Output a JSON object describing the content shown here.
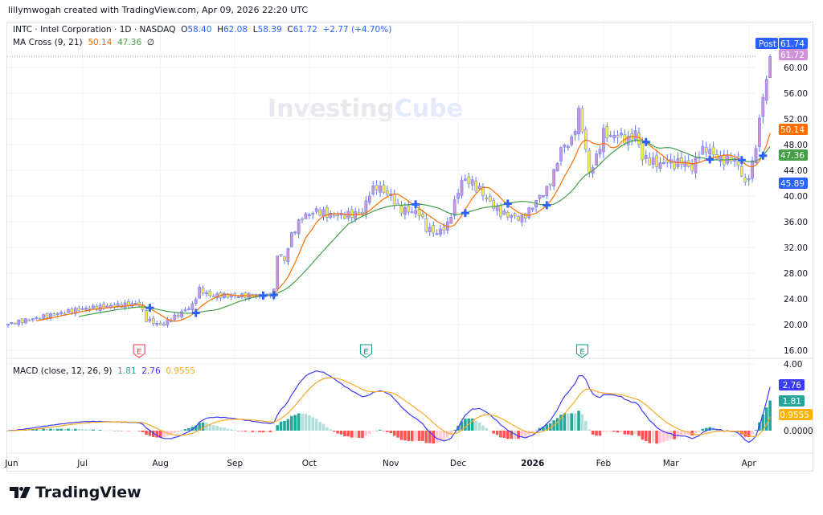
{
  "credit": "lillymwogah created with TradingView.com, Apr 09, 2026 22:20 UTC",
  "legend": {
    "symbol": "INTC · Intel Corporation · 1D · NASDAQ",
    "o_label": "O",
    "o": "58.40",
    "h_label": "H",
    "h": "62.08",
    "l_label": "L",
    "l": "58.39",
    "c_label": "C",
    "c": "61.72",
    "change": "+2.77 (+4.70%)",
    "ma_name": "MA Cross (9, 21)",
    "ma_fast": "50.14",
    "ma_slow": "47.36",
    "ma_icon": "∅",
    "macd_name": "MACD (close, 12, 26, 9)",
    "macd_hist": "1.81",
    "macd_line": "2.76",
    "macd_signal": "0.9555"
  },
  "watermark": {
    "a": "Investing",
    "b": "Cube"
  },
  "logo": "TradingView",
  "colors": {
    "up_body": "#ce93d8",
    "down_body": "#ffeb3b",
    "wick": "#5b7cfa",
    "ma_fast": "#ff6d00",
    "ma_slow": "#43a047",
    "cross": "#2962ff",
    "macd": "#3b3bff",
    "signal": "#f9a825",
    "hist_pos": "#26a69a",
    "hist_pos_light": "#b2dfdb",
    "hist_neg": "#ff5252",
    "hist_neg_light": "#ffcdd2"
  },
  "chart_data": {
    "type": "candlestick",
    "symbol": "INTC",
    "interval": "1D",
    "price_ticks": [
      "60.00",
      "56.00",
      "52.00",
      "48.00",
      "44.00",
      "40.00",
      "36.00",
      "32.00",
      "28.00",
      "24.00",
      "20.00",
      "16.00"
    ],
    "price_range": [
      16,
      60
    ],
    "macd_ticks": [
      "4.00",
      "0.0000"
    ],
    "x_ticks": [
      "Jun",
      "Jul",
      "Aug",
      "Sep",
      "Oct",
      "Nov",
      "Dec",
      "2026",
      "Feb",
      "Mar",
      "Apr"
    ],
    "x_tick_days": [
      1,
      21,
      43,
      64,
      85,
      108,
      127,
      148,
      168,
      187,
      209
    ],
    "close_path": [
      [
        0,
        20.1
      ],
      [
        20,
        22.4
      ],
      [
        37,
        23.3
      ],
      [
        39,
        20.8
      ],
      [
        43,
        19.9
      ],
      [
        45,
        20.5
      ],
      [
        52,
        23
      ],
      [
        54,
        25.5
      ],
      [
        57,
        24.5
      ],
      [
        63,
        24.5
      ],
      [
        73,
        24.5
      ],
      [
        75,
        25.2
      ],
      [
        76,
        31
      ],
      [
        78,
        30
      ],
      [
        80,
        34
      ],
      [
        83,
        36.7
      ],
      [
        87,
        37.7
      ],
      [
        91,
        37
      ],
      [
        95,
        37
      ],
      [
        100,
        37.4
      ],
      [
        102,
        40.5
      ],
      [
        104,
        41.5
      ],
      [
        108,
        40
      ],
      [
        110,
        38
      ],
      [
        113,
        37.7
      ],
      [
        116,
        37.4
      ],
      [
        118,
        35
      ],
      [
        121,
        34.2
      ],
      [
        124,
        35.5
      ],
      [
        126,
        39
      ],
      [
        128,
        42.4
      ],
      [
        130,
        42.4
      ],
      [
        133,
        41
      ],
      [
        136,
        39
      ],
      [
        139,
        37.4
      ],
      [
        143,
        36.7
      ],
      [
        145,
        36.5
      ],
      [
        147,
        37.7
      ],
      [
        150,
        40
      ],
      [
        152,
        41
      ],
      [
        154,
        43.6
      ],
      [
        156,
        47.4
      ],
      [
        159,
        48.6
      ],
      [
        161,
        53
      ],
      [
        162,
        50.5
      ],
      [
        164,
        43.6
      ],
      [
        166,
        46
      ],
      [
        168,
        49.9
      ],
      [
        170,
        49.2
      ],
      [
        172,
        49.5
      ],
      [
        175,
        48.6
      ],
      [
        177,
        49.9
      ],
      [
        179,
        46
      ],
      [
        181,
        45.5
      ],
      [
        184,
        44.9
      ],
      [
        186,
        45.5
      ],
      [
        188,
        44.9
      ],
      [
        190,
        45.5
      ],
      [
        193,
        44.2
      ],
      [
        195,
        46.7
      ],
      [
        197,
        47.4
      ],
      [
        200,
        46
      ],
      [
        202,
        45.5
      ],
      [
        204,
        46
      ],
      [
        206,
        44.9
      ],
      [
        208,
        41.7
      ],
      [
        210,
        44.9
      ],
      [
        211,
        48
      ],
      [
        212,
        51.7
      ],
      [
        213,
        55.5
      ],
      [
        214,
        58.4
      ],
      [
        215,
        61.72
      ]
    ],
    "last": {
      "open": 58.4,
      "high": 62.08,
      "low": 58.39,
      "close": 61.72
    },
    "earnings_days": [
      37,
      101,
      162
    ],
    "price_tags": [
      {
        "label": "Post",
        "value": "61.74",
        "color": "#2962ff"
      },
      {
        "value": "61.72",
        "color": "#ce93d8"
      },
      {
        "value": "50.14",
        "color": "#ff6d00"
      },
      {
        "value": "47.36",
        "color": "#43a047"
      },
      {
        "value": "45.89",
        "color": "#2962ff"
      }
    ],
    "macd_tags": [
      {
        "value": "2.76",
        "color": "#3b3bff"
      },
      {
        "value": "1.81",
        "color": "#26a69a"
      },
      {
        "value": "0.9555",
        "color": "#ffb300"
      }
    ],
    "earnings_label": "E"
  }
}
